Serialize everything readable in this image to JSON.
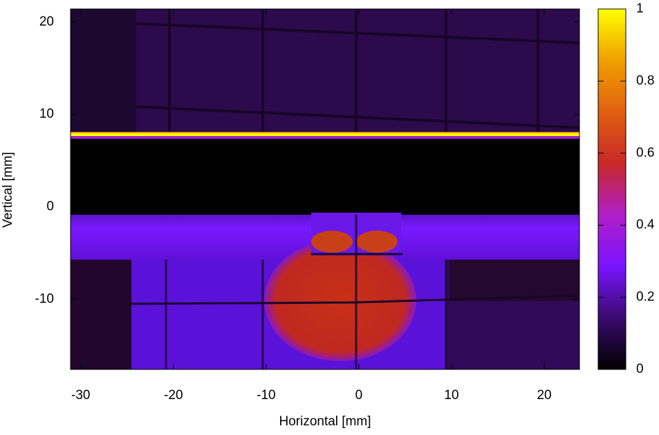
{
  "chart_data": {
    "type": "heatmap",
    "x_label": "Horizontal [mm]",
    "y_label": "Vertical [mm]",
    "xlim": [
      -31.1,
      23.8
    ],
    "xticks": [
      -30,
      -20,
      -10,
      0,
      10,
      20
    ],
    "ylim": [
      -17.6,
      21.4
    ],
    "yticks": [
      -10,
      0,
      10,
      20
    ],
    "colorbar": {
      "lim": [
        0,
        1
      ],
      "ticks": [
        0,
        0.2,
        0.4,
        0.6,
        0.8,
        1
      ],
      "colormap": [
        "#000000",
        "#3a0a6e",
        "#7a14ff",
        "#b01ec8",
        "#c82828",
        "#e06010",
        "#f0a000",
        "#ffff00"
      ]
    }
  }
}
